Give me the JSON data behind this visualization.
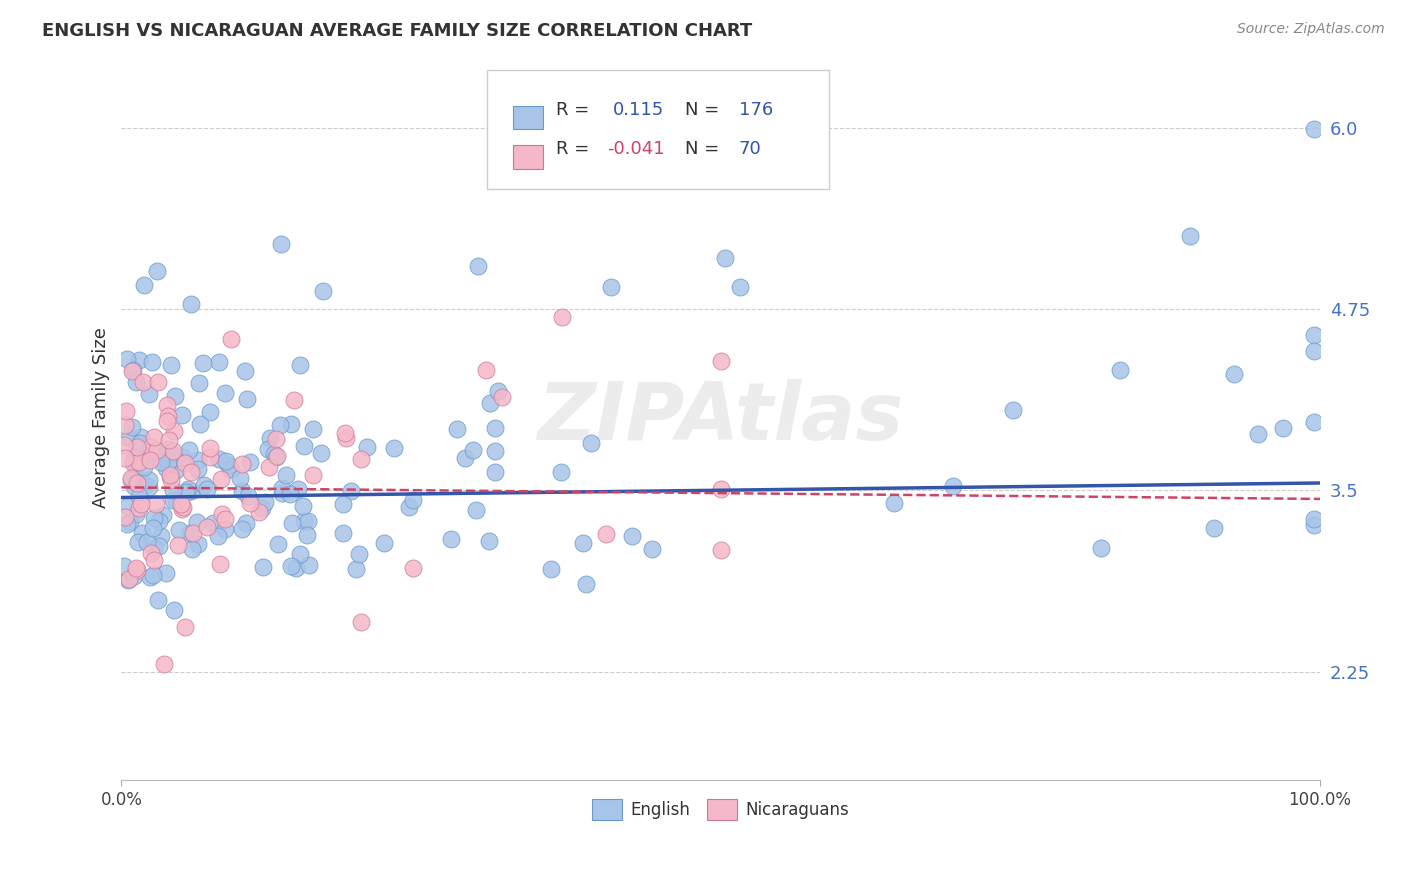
{
  "title": "ENGLISH VS NICARAGUAN AVERAGE FAMILY SIZE CORRELATION CHART",
  "source_text": "Source: ZipAtlas.com",
  "ylabel": "Average Family Size",
  "xlim": [
    0,
    100
  ],
  "ylim": [
    1.5,
    6.5
  ],
  "yticks": [
    2.25,
    3.5,
    4.75,
    6.0
  ],
  "english_color": "#a8c4e8",
  "english_edge_color": "#6699cc",
  "nicaraguan_color": "#f5b8c8",
  "nicaraguan_edge_color": "#cc7799",
  "english_line_color": "#3355aa",
  "nicaraguan_line_color": "#cc4466",
  "background_color": "#ffffff",
  "grid_color": "#cccccc",
  "ytick_color": "#4472c4",
  "legend_R_english": "0.115",
  "legend_N_english": "176",
  "legend_R_nicaraguan": "-0.041",
  "legend_N_nicaraguan": "70",
  "watermark": "ZIPAtlas",
  "title_fontsize": 13,
  "axis_fontsize": 12,
  "legend_fontsize": 13
}
